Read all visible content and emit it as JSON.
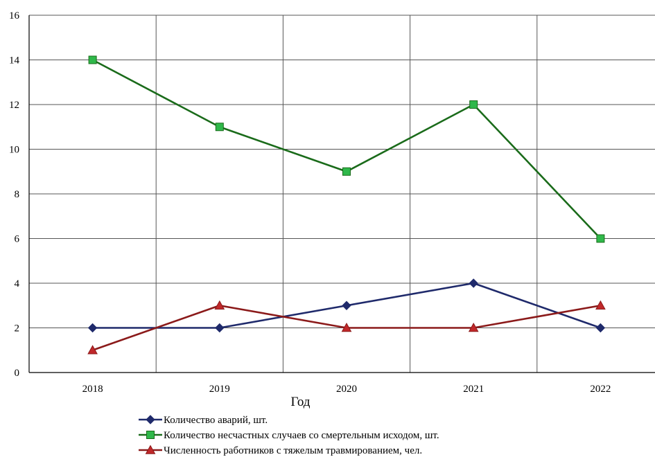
{
  "chart_data": {
    "type": "line",
    "title": "",
    "xlabel": "Год",
    "ylabel": "",
    "categories": [
      "2018",
      "2019",
      "2020",
      "2021",
      "2022"
    ],
    "ylim": [
      0,
      16
    ],
    "yticks": [
      "0",
      "2",
      "4",
      "6",
      "8",
      "10",
      "12",
      "14",
      "16"
    ],
    "grid": true,
    "legend_position": "bottom",
    "series": [
      {
        "name": "Количество аварий, шт.",
        "values": [
          2,
          2,
          3,
          4,
          2
        ],
        "color": "#1f2a6b",
        "marker": "diamond"
      },
      {
        "name": "Количество несчастных случаев со смертельным исходом, шт.",
        "values": [
          14,
          11,
          9,
          12,
          6
        ],
        "color": "#1a6b1a",
        "marker_fill": "#2fb84a",
        "marker": "square"
      },
      {
        "name": "Численность работников с тяжелым травмированием, чел.",
        "values": [
          1,
          3,
          2,
          2,
          3
        ],
        "color": "#8b1a1a",
        "marker_fill": "#c0282a",
        "marker": "triangle"
      }
    ]
  }
}
